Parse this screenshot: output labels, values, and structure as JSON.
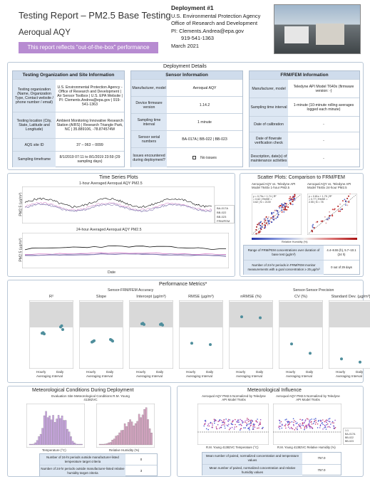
{
  "header": {
    "title": "Testing Report – PM2.5 Base Testing",
    "subtitle": "Aeroqual AQY",
    "banner": "This report reflects \"out-of-the-box\" performance"
  },
  "deployment": {
    "title": "Deployment #1",
    "line1": "U.S. Environmental Protection Agency",
    "line2": "Office of Research and Development",
    "line3": "PI: Clements.Andrea@epa.gov",
    "line4": "919-541-1363",
    "line5": "March 2021"
  },
  "details": {
    "section_title": "Deployment Details",
    "org": {
      "band": "Testing Organization and Site Information",
      "rows": [
        {
          "k": "Testing organization (Name, Organization Type, Contact website / phone number / email)",
          "v": "U.S. Environmental Protection Agency - Office of Research and Development | Air Sensor Toolbox | U.S. EPA Website | PI: Clements.Andrea@epa.gov | 919-541-1363"
        },
        {
          "k": "Testing location (City, State, Latitude and Longitude)",
          "v": "Ambient Monitoring Innovative Research Station (AIRS) | Research Triangle Park, NC | 35.889106, -78.874574W"
        },
        {
          "k": "AQS site ID",
          "v": "37 – 063 – 0099"
        },
        {
          "k": "Sampling timeframe",
          "v": "8/1/2019 07:11 to 8/1/2019 23:59 (29 sampling days)"
        }
      ]
    },
    "sensor": {
      "band": "Sensor Information",
      "rows": [
        {
          "k": "Manufacturer, model",
          "v": "Aeroqual AQY"
        },
        {
          "k": "Device firmware version",
          "v": "1.14.2"
        },
        {
          "k": "Sampling time interval",
          "v": "1 minute"
        },
        {
          "k": "Sensor serial numbers",
          "v": "BA-017A   |   BB-022   |   BB-023"
        },
        {
          "k": "Issues encountered during deployment?",
          "v": "No issues"
        }
      ]
    },
    "frm": {
      "band": "FRM/FEM Information",
      "rows": [
        {
          "k": "Manufacturer, model",
          "v": "Teledyne API Model T640x (firmware version: -)"
        },
        {
          "k": "Sampling time interval",
          "v": "1-minute (10-minute rolling averages logged each minute)"
        },
        {
          "k": "Date of calibration",
          "v": "-"
        },
        {
          "k": "Date of flowrate verification check",
          "v": "-"
        },
        {
          "k": "Description, date(s) of maintenance activities",
          "v": "-"
        }
      ]
    }
  },
  "timeseries": {
    "section_title": "Time Series Plots",
    "plot1_title": "1-hour Averaged Aeroqual AQY PM2.5",
    "plot2_title": "24-hour Averaged Aeroqual AQY PM2.5",
    "ylabel": "PM2.5 (µg/m³)",
    "xlabel": "Date",
    "legend": [
      "BA-017A",
      "BB-022",
      "BB-023",
      "FRM/FEM"
    ],
    "colors": [
      "#d46fc2",
      "#8b8bb8",
      "#6b5aa0",
      "#111111"
    ]
  },
  "scatter": {
    "section_title": "Scatter Plots: Comparison to FRM/FEM",
    "left_title": "Aeroqual AQY vs. Teledyne API Model T640x 1-hour PM2.5",
    "right_title": "Aeroqual AQY vs. Teledyne API Model T640x 24-hour PM2.5",
    "left_stats": "y = 0.79x + 1.74 | R² = 0.62 | RMSE = 3.62 | N = 2139",
    "right_stats": "y = 0.81x + 1.75 | R² = 0.77 | RMSE = 2.55 | N = 78",
    "xlabel": "Teledyne API Model T640x PM2.5 (µg/m³)",
    "ylabel": "Sensor PM2.5 (µg/m³)",
    "colorbar": "Relative Humidity (%)",
    "table": [
      {
        "k": "Range of FRM/FEM concentrations over duration of base test (µg/m³)",
        "v": "4.4–8.55 (h), 5.7–10.1 (24 h)"
      },
      {
        "k": "Number of 24-hr periods in FRM/FEM monitor measurements with a goal concentration ≥ 25 µg/m³",
        "v": "0 out of 29 days"
      }
    ]
  },
  "metrics": {
    "section_title": "Performance Metrics*",
    "accuracy_label": "Sensor-FRM/FEM Accuracy",
    "precision_label": "Sensor-Sensor Precision",
    "xcats": [
      "Hourly",
      "Daily"
    ],
    "xlabel": "Averaging Interval",
    "panels": [
      {
        "title": "R²",
        "ylim": [
          0,
          1
        ],
        "hourly": [
          0.52,
          0.53,
          0.51
        ],
        "daily": [
          0.62,
          0.64,
          0.58
        ]
      },
      {
        "title": "Slope",
        "ylim": [
          0,
          2
        ],
        "hourly": [
          0.76,
          0.78,
          0.8
        ],
        "daily": [
          0.84,
          0.82,
          0.79
        ]
      },
      {
        "title": "Intercept (µg/m³)",
        "ylim": [
          -5,
          5
        ],
        "hourly": [
          1.7,
          1.8,
          1.6
        ],
        "daily": [
          1.6,
          1.7,
          1.5
        ]
      },
      {
        "title": "RMSE (µg/m³)",
        "ylim": [
          0,
          10
        ],
        "hourly": [
          3.6
        ],
        "daily": [
          3.4
        ]
      },
      {
        "title": "nRMSE (%)",
        "ylim": [
          0,
          60
        ],
        "hourly": [
          47
        ],
        "daily": [
          46
        ]
      },
      {
        "title": "CV (%)",
        "ylim": [
          0,
          40
        ],
        "hourly": [
          14
        ],
        "daily": [
          8
        ]
      },
      {
        "title": "Standard Dev. (µg/m³)",
        "ylim": [
          0,
          10
        ],
        "hourly": [
          1.1
        ],
        "daily": [
          0.6
        ]
      }
    ]
  },
  "met": {
    "section_title": "Meteorological Conditions During Deployment",
    "subtitle": "Evaluation Site Meteorological Conditions R.M. Young 41382VC",
    "temp_xlabel": "Temperature (°C)",
    "rh_xlabel": "Relative Humidity (%)",
    "table": [
      {
        "k": "Number of 24-hr periods outside manufacturer-listed temperature target criteria",
        "v": "0"
      },
      {
        "k": "Number of 24-hr periods outside manufacturer-listed relative humidity target criteria",
        "v": "3"
      }
    ]
  },
  "influence": {
    "section_title": "Meteorological Influence",
    "left_title": "Aeroqual AQY PM2.5 Normalized by Teledyne API Model T640x",
    "right_title": "Aeroqual AQY PM2.5 Normalized by Teledyne API Model T640x",
    "left_xlabel": "R.M. Young 41382VC Temperature (°C)",
    "right_xlabel": "R.M. Young 41382VC Relative Humidity (%)",
    "legend": [
      "1:1",
      "BA-017A",
      "BB-022",
      "BB-023"
    ],
    "table": [
      {
        "k": "Mean number of paired, normalized concentration and temperature values",
        "v": "757.0"
      },
      {
        "k": "Mean number of paired, normalized concentration and relative humidity values",
        "v": "757.0"
      }
    ]
  }
}
